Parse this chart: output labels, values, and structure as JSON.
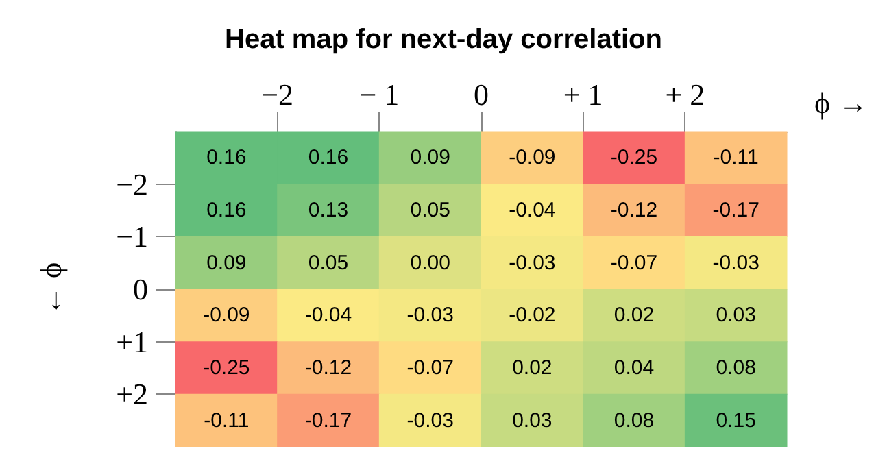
{
  "chart_data": {
    "type": "heatmap",
    "title": "Heat map for next-day correlation",
    "xlabel": "ϕ →",
    "ylabel": "← ϕ",
    "xlim": [
      -3,
      3
    ],
    "xticks": [
      {
        "value": -2,
        "label": "−2"
      },
      {
        "value": -1,
        "label": "− 1"
      },
      {
        "value": 0,
        "label": "0"
      },
      {
        "value": 1,
        "label": "+ 1"
      },
      {
        "value": 2,
        "label": "+ 2"
      }
    ],
    "ylim": [
      3,
      -3
    ],
    "yticks": [
      {
        "value": -2,
        "label": "−2"
      },
      {
        "value": -1,
        "label": "−1"
      },
      {
        "value": 0,
        "label": "0"
      },
      {
        "value": 1,
        "label": "+1"
      },
      {
        "value": 2,
        "label": "+2"
      }
    ],
    "cells": [
      [
        0.16,
        0.16,
        0.09,
        -0.09,
        -0.25,
        -0.11
      ],
      [
        0.16,
        0.13,
        0.05,
        -0.04,
        -0.12,
        -0.17
      ],
      [
        0.09,
        0.05,
        0.0,
        -0.03,
        -0.07,
        -0.03
      ],
      [
        -0.09,
        -0.04,
        -0.03,
        -0.02,
        0.02,
        0.03
      ],
      [
        -0.25,
        -0.12,
        -0.07,
        0.02,
        0.04,
        0.08
      ],
      [
        -0.11,
        -0.17,
        -0.03,
        0.03,
        0.08,
        0.15
      ]
    ],
    "cell_labels": [
      [
        "0.16",
        "0.16",
        "0.09",
        "-0.09",
        "-0.25",
        "-0.11"
      ],
      [
        "0.16",
        "0.13",
        "0.05",
        "-0.04",
        "-0.12",
        "-0.17"
      ],
      [
        "0.09",
        "0.05",
        "0.00",
        "-0.03",
        "-0.07",
        "-0.03"
      ],
      [
        "-0.09",
        "-0.04",
        "-0.03",
        "-0.02",
        "0.02",
        "0.03"
      ],
      [
        "-0.25",
        "-0.12",
        "-0.07",
        "0.02",
        "0.04",
        "0.08"
      ],
      [
        "-0.11",
        "-0.17",
        "-0.03",
        "0.03",
        "0.08",
        "0.15"
      ]
    ]
  }
}
